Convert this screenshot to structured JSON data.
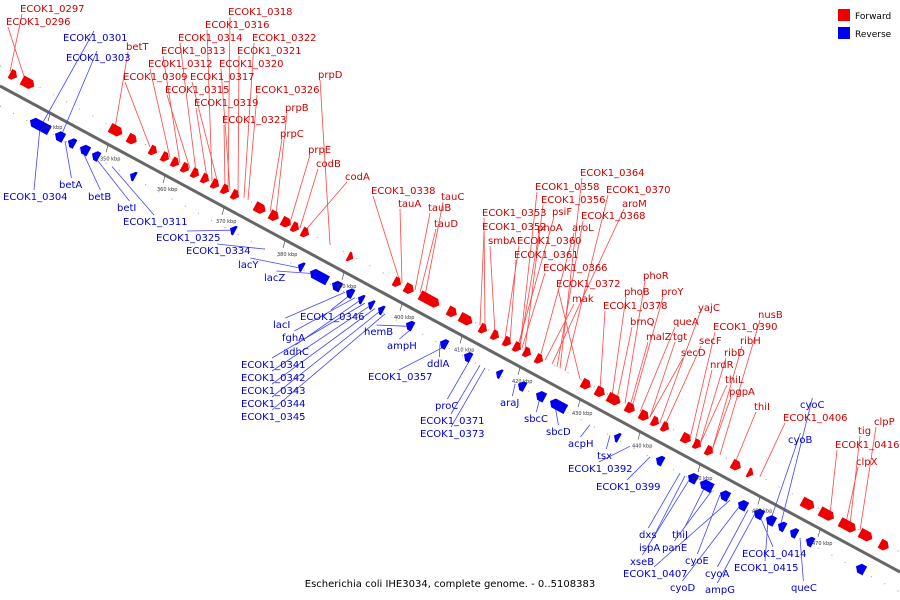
{
  "caption": "Escherichia coli IHE3034, complete genome. - 0..5108383",
  "legend": {
    "forward": {
      "label": "Forward",
      "color": "#ee0000"
    },
    "reverse": {
      "label": "Reverse",
      "color": "#0000ee"
    }
  },
  "ticks": [
    "340 kbp",
    "350 kbp",
    "360 kbp",
    "370 kbp",
    "380 kbp",
    "390 kbp",
    "400 kbp",
    "410 kbp",
    "420 kbp",
    "430 kbp",
    "440 kbp",
    "450 kbp",
    "460 kbp",
    "470 kbp"
  ],
  "forward_labels": [
    "ECOK1_0297",
    "ECOK1_0296",
    "betT",
    "ECOK1_0318",
    "ECOK1_0316",
    "ECOK1_0314",
    "ECOK1_0322",
    "ECOK1_0313",
    "ECOK1_0321",
    "ECOK1_0312",
    "ECOK1_0320",
    "ECOK1_0309",
    "ECOK1_0317",
    "prpD",
    "ECOK1_0315",
    "ECOK1_0326",
    "ECOK1_0319",
    "prpB",
    "ECOK1_0323",
    "prpC",
    "prpE",
    "codB",
    "codA",
    "ECOK1_0338",
    "tauC",
    "tauA",
    "tauB",
    "tauD",
    "ECOK1_0364",
    "ECOK1_0358",
    "ECOK1_0370",
    "ECOK1_0356",
    "aroM",
    "psiF",
    "ECOK1_0353",
    "ECOK1_0368",
    "ECOK1_0352",
    "phoA",
    "aroL",
    "smbA",
    "ECOK1_0360",
    "ECOK1_0361",
    "ECOK1_0366",
    "ECOK1_0372",
    "mak",
    "phoR",
    "phoB",
    "proY",
    "ECOK1_0378",
    "yajC",
    "nusB",
    "brnQ",
    "queA",
    "ECOK1_0390",
    "malZ",
    "tgt",
    "secF",
    "ribH",
    "secD",
    "ribD",
    "nrdR",
    "thiL",
    "pgpA",
    "thiI",
    "ECOK1_0406",
    "clpP",
    "tig",
    "ECOK1_0416",
    "clpX"
  ],
  "reverse_labels": [
    "ECOK1_0301",
    "ECOK1_0303",
    "ECOK1_0304",
    "betA",
    "betB",
    "betI",
    "ECOK1_0311",
    "ECOK1_0325",
    "ECOK1_0334",
    "lacY",
    "lacZ",
    "lacI",
    "ECOK1_0346",
    "fghA",
    "adhC",
    "ECOK1_0341",
    "ECOK1_0342",
    "ECOK1_0343",
    "ECOK1_0344",
    "ECOK1_0345",
    "hemB",
    "ampH",
    "ddlA",
    "ECOK1_0357",
    "proC",
    "ECOK1_0371",
    "ECOK1_0373",
    "araJ",
    "sbcC",
    "sbcD",
    "acpH",
    "tsx",
    "ECOK1_0392",
    "ECOK1_0399",
    "cyoC",
    "cyoB",
    "dxs",
    "ispA",
    "xseB",
    "thiJ",
    "panE",
    "cyoE",
    "ECOK1_0407",
    "cyoD",
    "cyoA",
    "ampG",
    "ECOK1_0414",
    "ECOK1_0415",
    "queC"
  ]
}
